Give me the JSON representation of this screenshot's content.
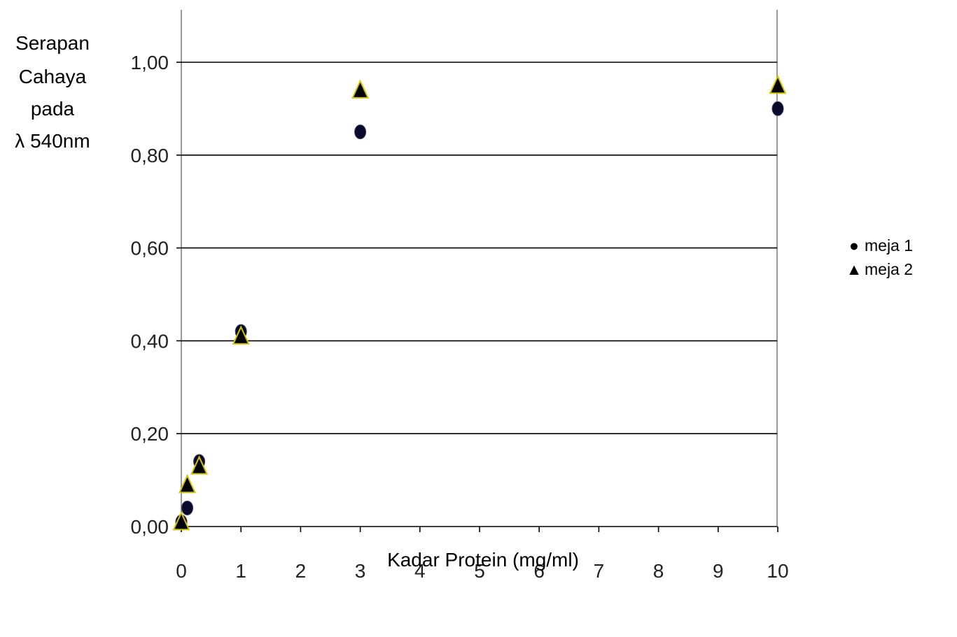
{
  "chart_data": {
    "type": "scatter",
    "ylabel_lines": [
      "Serapan",
      "Cahaya",
      "pada",
      "λ 540nm"
    ],
    "xlabel": "Kadar Protein (mg/ml)",
    "x_categories": [
      "0",
      "1",
      "2",
      "3",
      "4",
      "5",
      "6",
      "7",
      "8",
      "9",
      "10"
    ],
    "y_ticks": [
      "0,00",
      "0,20",
      "0,40",
      "0,60",
      "0,80",
      "1,00"
    ],
    "ylim": [
      0,
      1.0
    ],
    "grid": true,
    "legend_position": "right",
    "series": [
      {
        "name": "meja 1",
        "marker": "circle",
        "color": "#0a0a2a",
        "points": [
          {
            "x": 0.0,
            "y": 0.01
          },
          {
            "x": 0.1,
            "y": 0.04
          },
          {
            "x": 0.3,
            "y": 0.14
          },
          {
            "x": 1,
            "y": 0.42
          },
          {
            "x": 3,
            "y": 0.85
          },
          {
            "x": 10,
            "y": 0.9
          }
        ]
      },
      {
        "name": "meja 2",
        "marker": "triangle",
        "color": "#000000",
        "edge_color": "#d4c400",
        "points": [
          {
            "x": 0.0,
            "y": 0.01
          },
          {
            "x": 0.1,
            "y": 0.09
          },
          {
            "x": 0.3,
            "y": 0.13
          },
          {
            "x": 1,
            "y": 0.41
          },
          {
            "x": 3,
            "y": 0.94
          },
          {
            "x": 10,
            "y": 0.95
          }
        ]
      }
    ]
  }
}
